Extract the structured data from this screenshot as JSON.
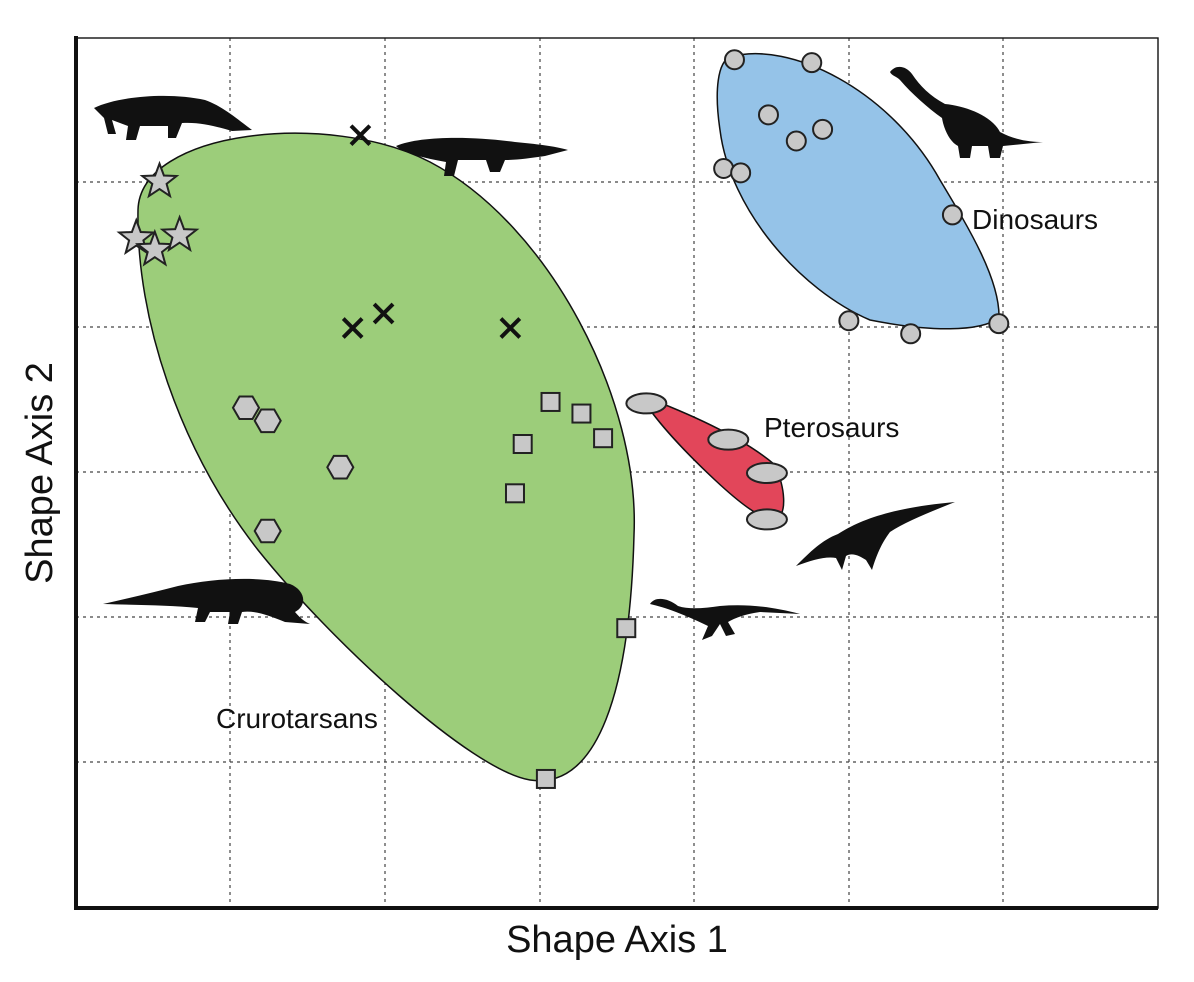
{
  "chart_data": {
    "type": "scatter",
    "xlabel": "Shape Axis 1",
    "ylabel": "Shape Axis 2",
    "xlim": [
      0,
      7
    ],
    "ylim": [
      0,
      6
    ],
    "grid": true,
    "groups": [
      {
        "label": "Crurotarsans",
        "color": "#9ccd7a",
        "series": [
          {
            "marker": "star",
            "x": [
              0.54,
              0.39,
              0.51,
              0.67
            ],
            "y": [
              5.01,
              4.62,
              4.54,
              4.64
            ]
          },
          {
            "marker": "cross",
            "x": [
              1.84,
              1.79,
              1.99,
              2.81
            ],
            "y": [
              5.33,
              4.0,
              4.1,
              4.0
            ]
          },
          {
            "marker": "hexagon",
            "x": [
              1.1,
              1.24,
              1.71,
              1.24
            ],
            "y": [
              3.45,
              3.36,
              3.04,
              2.6
            ]
          },
          {
            "marker": "square",
            "x": [
              3.07,
              3.27,
              3.41,
              2.89,
              2.84,
              3.56,
              3.04
            ],
            "y": [
              3.49,
              3.41,
              3.24,
              3.2,
              2.86,
              1.93,
              0.89
            ]
          }
        ]
      },
      {
        "label": "Dinosaurs",
        "color": "#95c3e8",
        "series": [
          {
            "marker": "circle",
            "x": [
              4.26,
              4.76,
              4.48,
              4.66,
              4.83,
              4.19,
              4.3,
              5.67,
              5.0,
              5.4,
              5.97
            ],
            "y": [
              5.85,
              5.83,
              5.47,
              5.29,
              5.37,
              5.1,
              5.07,
              4.78,
              4.05,
              3.96,
              4.03
            ]
          }
        ]
      },
      {
        "label": "Pterosaurs",
        "color": "#e2465a",
        "series": [
          {
            "marker": "ellipse",
            "x": [
              3.69,
              4.22,
              4.47,
              4.47
            ],
            "y": [
              3.48,
              3.23,
              3.0,
              2.68
            ]
          }
        ]
      }
    ]
  }
}
